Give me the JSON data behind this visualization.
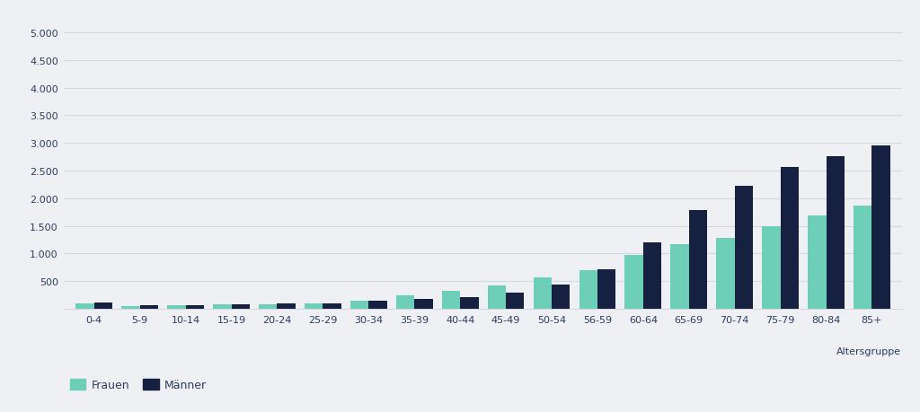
{
  "categories": [
    "0-4",
    "5-9",
    "10-14",
    "15-19",
    "20-24",
    "25-29",
    "30-34",
    "35-39",
    "40-44",
    "45-49",
    "50-54",
    "56-59",
    "60-64",
    "65-69",
    "70-74",
    "75-79",
    "80-84",
    "85+"
  ],
  "frauen": [
    90,
    55,
    60,
    75,
    80,
    100,
    140,
    250,
    320,
    430,
    565,
    690,
    970,
    1170,
    1280,
    1490,
    1680,
    1870
  ],
  "maenner": [
    115,
    65,
    70,
    85,
    90,
    105,
    145,
    185,
    215,
    290,
    435,
    720,
    1200,
    1780,
    2230,
    2560,
    2760,
    2960
  ],
  "frauen_color": "#6ecfb9",
  "maenner_color": "#162040",
  "background_color": "#eef0f4",
  "grid_color": "#d5d8e0",
  "text_color": "#2e3d5f",
  "ytick_labels": [
    "500",
    "1.000",
    "1.500",
    "2.000",
    "2.500",
    "3.000",
    "3.500",
    "4.000",
    "4.500",
    "5.000"
  ],
  "ytick_values": [
    500,
    1000,
    1500,
    2000,
    2500,
    3000,
    3500,
    4000,
    4500,
    5000
  ],
  "ylim": [
    0,
    5300
  ],
  "xlabel": "Altersgruppe",
  "legend_frauen": "Frauen",
  "legend_maenner": "Männer",
  "bar_width": 0.4
}
